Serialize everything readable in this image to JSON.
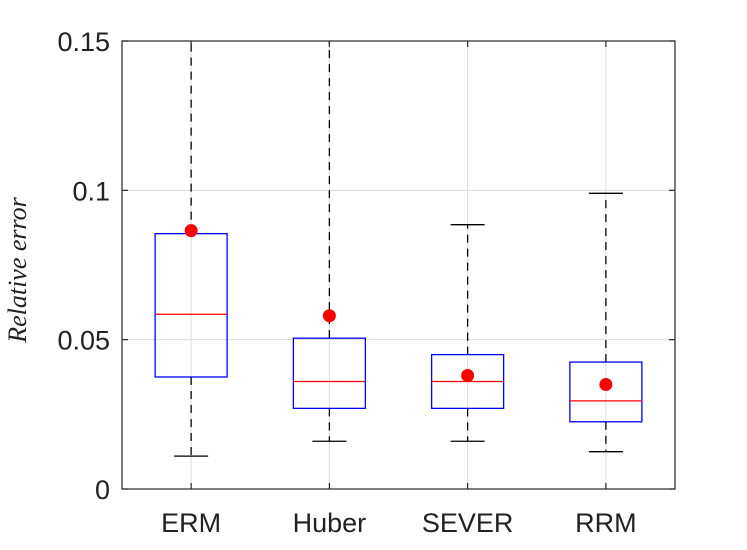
{
  "chart_data": {
    "type": "boxplot",
    "title": "",
    "xlabel": "",
    "ylabel": "Relative error",
    "ylim": [
      0,
      0.15
    ],
    "yticks": [
      0,
      0.05,
      0.1,
      0.15
    ],
    "ytick_labels": [
      "0",
      "0.05",
      "0.1",
      "0.15"
    ],
    "grid": true,
    "categories": [
      "ERM",
      "Huber",
      "SEVER",
      "RRM"
    ],
    "boxes": [
      {
        "name": "ERM",
        "whisker_low": 0.011,
        "q1": 0.0375,
        "median": 0.0585,
        "q3": 0.0855,
        "whisker_high": 0.15,
        "mean": 0.0865
      },
      {
        "name": "Huber",
        "whisker_low": 0.016,
        "q1": 0.027,
        "median": 0.036,
        "q3": 0.0505,
        "whisker_high": 0.15,
        "mean": 0.058
      },
      {
        "name": "SEVER",
        "whisker_low": 0.016,
        "q1": 0.027,
        "median": 0.036,
        "q3": 0.045,
        "whisker_high": 0.0885,
        "mean": 0.038
      },
      {
        "name": "RRM",
        "whisker_low": 0.0125,
        "q1": 0.0225,
        "median": 0.0295,
        "q3": 0.0425,
        "whisker_high": 0.099,
        "mean": 0.035
      }
    ],
    "colors": {
      "box": "#0000ff",
      "median": "#ff0000",
      "mean_marker": "#ff0000",
      "whisker": "#000000",
      "grid": "#dcdcdc",
      "axis": "#262626"
    }
  }
}
